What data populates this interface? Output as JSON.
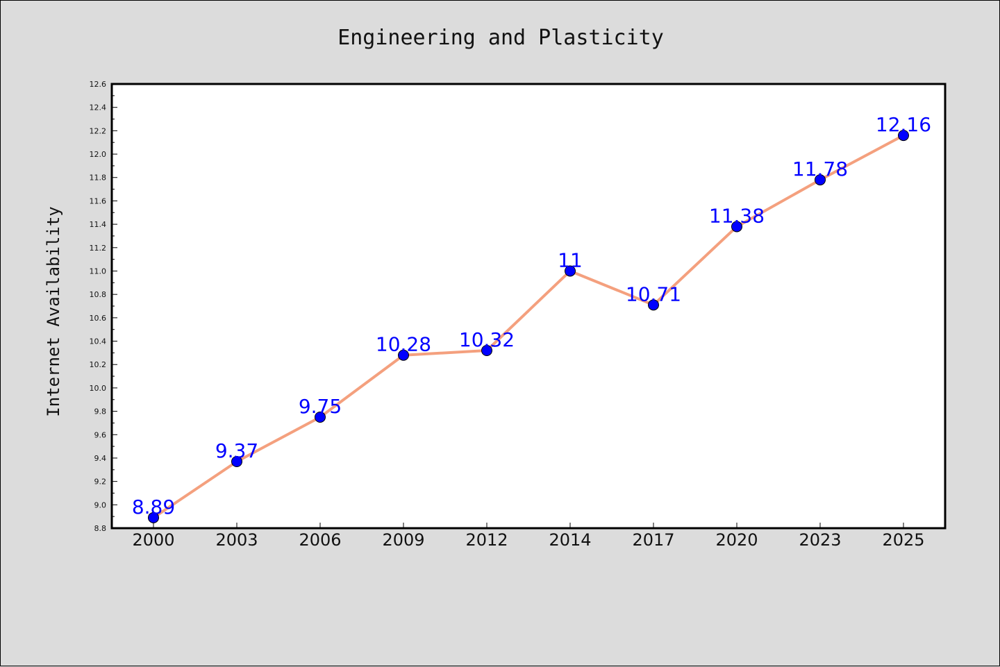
{
  "chart_data": {
    "type": "line",
    "title": "Engineering and Plasticity",
    "xlabel": "",
    "ylabel": "Internet Availability",
    "categories": [
      "2000",
      "2003",
      "2006",
      "2009",
      "2012",
      "2014",
      "2017",
      "2020",
      "2023",
      "2025"
    ],
    "series": [
      {
        "values": [
          8.89,
          9.37,
          9.75,
          10.28,
          10.32,
          11,
          10.71,
          11.38,
          11.78,
          12.16
        ],
        "labels": [
          "8.89",
          "9.37",
          "9.75",
          "10.28",
          "10.32",
          "11",
          "10.71",
          "11.38",
          "11.78",
          "12.16"
        ]
      }
    ],
    "ylim": [
      8.8,
      12.6
    ],
    "yticks": [
      "8.8",
      "9.0",
      "9.2",
      "9.4",
      "9.6",
      "9.8",
      "10.0",
      "10.2",
      "10.4",
      "10.6",
      "10.8",
      "11.0",
      "11.2",
      "11.4",
      "11.6",
      "11.8",
      "12.0",
      "12.2",
      "12.4",
      "12.6"
    ],
    "grid": false,
    "legend": "none",
    "colors": {
      "line": "#f4a07e",
      "marker": "#0000ff",
      "data_label": "#0000ff",
      "background": "#dcdcdc",
      "plot_area": "#ffffff"
    }
  }
}
